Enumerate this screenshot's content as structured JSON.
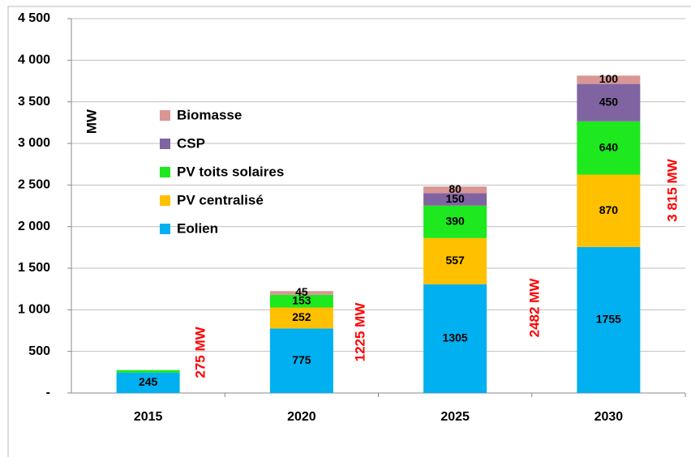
{
  "chart_data": {
    "type": "stacked_bar",
    "y_axis_label": "MW",
    "categories": [
      "2015",
      "2020",
      "2025",
      "2030"
    ],
    "series": [
      {
        "name": "Eolien",
        "color": "#00b0f0",
        "values": [
          245,
          775,
          1305,
          1755
        ],
        "value_labels": [
          "245",
          "775",
          "1305",
          "1755"
        ]
      },
      {
        "name": "PV centralisé",
        "color": "#ffc000",
        "values": [
          null,
          252,
          557,
          870
        ],
        "value_labels": [
          null,
          "252",
          "557",
          "870"
        ]
      },
      {
        "name": "PV toits solaires",
        "color": "#1ee81e",
        "values": [
          30,
          153,
          390,
          640
        ],
        "value_labels": [
          null,
          "153",
          "390",
          "640"
        ]
      },
      {
        "name": "CSP",
        "color": "#8064a2",
        "values": [
          null,
          null,
          150,
          450
        ],
        "value_labels": [
          null,
          null,
          "150",
          "450"
        ]
      },
      {
        "name": "Biomasse",
        "color": "#d99694",
        "values": [
          null,
          45,
          80,
          100
        ],
        "value_labels": [
          null,
          "45",
          "80",
          "100"
        ]
      }
    ],
    "total_labels": [
      "275 MW",
      "1225 MW",
      "2482 MW",
      "3 815 MW"
    ],
    "ylim": [
      0,
      4500
    ],
    "yticks": [
      {
        "value": 0,
        "label": "-"
      },
      500,
      {
        "value": 1000,
        "label": "1 000"
      },
      {
        "value": 1500,
        "label": "1 500"
      },
      {
        "value": 2000,
        "label": "2 000"
      },
      {
        "value": 2500,
        "label": "2 500"
      },
      {
        "value": 3000,
        "label": "3 000"
      },
      {
        "value": 3500,
        "label": "3 500"
      },
      {
        "value": 4000,
        "label": "4 000"
      },
      {
        "value": 4500,
        "label": "4 500"
      }
    ],
    "grid": true
  }
}
